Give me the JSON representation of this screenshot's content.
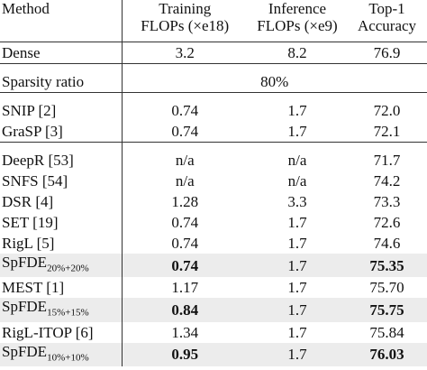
{
  "header": {
    "method": "Method",
    "training": [
      "Training",
      "FLOPs (×e18)"
    ],
    "inference": [
      "Inference",
      "FLOPs (×e9)"
    ],
    "accuracy": [
      "Top-1",
      "Accuracy"
    ]
  },
  "rows": [
    [
      "Dense",
      "3.2",
      "8.2",
      "76.9"
    ],
    [
      "Sparsity ratio",
      "80%"
    ],
    [
      "SNIP [2]",
      "0.74",
      "1.7",
      "72.0"
    ],
    [
      "GraSP [3]",
      "0.74",
      "1.7",
      "72.1"
    ],
    [
      "DeepR [53]",
      "n/a",
      "n/a",
      "71.7"
    ],
    [
      "SNFS [54]",
      "n/a",
      "n/a",
      "74.2"
    ],
    [
      "DSR [4]",
      "1.28",
      "3.3",
      "73.3"
    ],
    [
      "SET [19]",
      "0.74",
      "1.7",
      "72.6"
    ],
    [
      "RigL [5]",
      "0.74",
      "1.7",
      "74.6"
    ],
    [
      {
        "text": "SpFDE",
        "subscript": "20%+20%"
      },
      "0.74",
      "1.7",
      "75.35"
    ],
    [
      "MEST [1]",
      "1.17",
      "1.7",
      "75.70"
    ],
    [
      {
        "text": "SpFDE",
        "subscript": "15%+15%"
      },
      "0.84",
      "1.7",
      "75.75"
    ],
    [
      "RigL-ITOP [6]",
      "1.34",
      "1.7",
      "75.84"
    ],
    [
      {
        "text": "SpFDE",
        "subscript": "10%+10%"
      },
      "0.95",
      "1.7",
      "76.03"
    ]
  ]
}
